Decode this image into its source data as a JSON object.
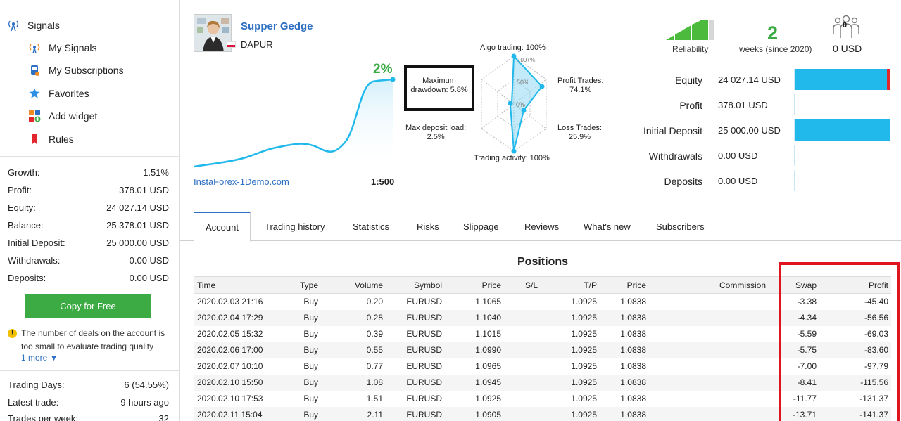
{
  "sidebar": {
    "nav": {
      "signals": "Signals",
      "my_signals": "My Signals",
      "my_subscriptions": "My Subscriptions",
      "favorites": "Favorites",
      "add_widget": "Add widget",
      "rules": "Rules"
    },
    "stats": [
      {
        "label": "Growth:",
        "value": "1.51%"
      },
      {
        "label": "Profit:",
        "value": "378.01 USD"
      },
      {
        "label": "Equity:",
        "value": "24 027.14 USD"
      },
      {
        "label": "Balance:",
        "value": "25 378.01 USD"
      },
      {
        "label": "Initial Deposit:",
        "value": "25 000.00 USD"
      },
      {
        "label": "Withdrawals:",
        "value": "0.00 USD"
      },
      {
        "label": "Deposits:",
        "value": "0.00 USD"
      }
    ],
    "copy_button": "Copy for Free",
    "warning": "The number of deals on the account is too small to evaluate trading quality",
    "more_link": "1 more ▼",
    "stats2": [
      {
        "label": "Trading Days:",
        "value": "6 (54.55%)"
      },
      {
        "label": "Latest trade:",
        "value": "9 hours ago"
      },
      {
        "label": "Trades per week:",
        "value": "32"
      }
    ]
  },
  "header": {
    "signal_name": "Supper Gedge",
    "broker": "DAPUR",
    "growth": "2%",
    "server": "InstaForex-1Demo.com",
    "leverage": "1:500",
    "colors": {
      "accent": "#2d6fc2",
      "green": "#3cab44",
      "bar": "#21b9ec",
      "red": "#e3262b"
    }
  },
  "radar": {
    "algo_trading": "Algo trading: 100%",
    "profit_trades_label": "Profit Trades:",
    "profit_trades_value": "74.1%",
    "loss_trades_label": "Loss Trades:",
    "loss_trades_value": "25.9%",
    "trading_activity": "Trading activity: 100%",
    "max_deposit_label": "Max deposit load:",
    "max_deposit_value": "2.5%",
    "max_drawdown_label": "Maximum",
    "max_drawdown_value": "drawdown: 5.8%",
    "scale_100": "100+%",
    "scale_50": "50%",
    "scale_0": "0%"
  },
  "summary": {
    "reliability_label": "Reliability",
    "weeks_value": "2",
    "weeks_label": "weeks (since 2020)",
    "subscribers_count": "0",
    "subscribers_funds": "0 USD"
  },
  "balance": [
    {
      "label": "Equity",
      "value": "24 027.14 USD",
      "fill": 0.961,
      "loss": 0.039
    },
    {
      "label": "Profit",
      "value": "378.01 USD",
      "fill": 0.0,
      "loss": 0
    },
    {
      "label": "Initial Deposit",
      "value": "25 000.00 USD",
      "fill": 1.0,
      "loss": 0
    },
    {
      "label": "Withdrawals",
      "value": "0.00 USD",
      "fill": 0.0,
      "loss": 0
    },
    {
      "label": "Deposits",
      "value": "0.00 USD",
      "fill": 0.0,
      "loss": 0
    }
  ],
  "tabs": [
    "Account",
    "Trading history",
    "Statistics",
    "Risks",
    "Slippage",
    "Reviews",
    "What's new",
    "Subscribers"
  ],
  "positions": {
    "title": "Positions",
    "columns": [
      "Time",
      "Type",
      "Volume",
      "Symbol",
      "Price",
      "S/L",
      "T/P",
      "Price",
      "Commission",
      "Swap",
      "Profit"
    ],
    "rows": [
      [
        "2020.02.03 21:16",
        "Buy",
        "0.20",
        "EURUSD",
        "1.1065",
        "",
        "1.0925",
        "1.0838",
        "",
        "-3.38",
        "-45.40"
      ],
      [
        "2020.02.04 17:29",
        "Buy",
        "0.28",
        "EURUSD",
        "1.1040",
        "",
        "1.0925",
        "1.0838",
        "",
        "-4.34",
        "-56.56"
      ],
      [
        "2020.02.05 15:32",
        "Buy",
        "0.39",
        "EURUSD",
        "1.1015",
        "",
        "1.0925",
        "1.0838",
        "",
        "-5.59",
        "-69.03"
      ],
      [
        "2020.02.06 17:00",
        "Buy",
        "0.55",
        "EURUSD",
        "1.0990",
        "",
        "1.0925",
        "1.0838",
        "",
        "-5.75",
        "-83.60"
      ],
      [
        "2020.02.07 10:10",
        "Buy",
        "0.77",
        "EURUSD",
        "1.0965",
        "",
        "1.0925",
        "1.0838",
        "",
        "-7.00",
        "-97.79"
      ],
      [
        "2020.02.10 15:50",
        "Buy",
        "1.08",
        "EURUSD",
        "1.0945",
        "",
        "1.0925",
        "1.0838",
        "",
        "-8.41",
        "-115.56"
      ],
      [
        "2020.02.10 17:53",
        "Buy",
        "1.51",
        "EURUSD",
        "1.0925",
        "",
        "1.0925",
        "1.0838",
        "",
        "-11.77",
        "-131.37"
      ],
      [
        "2020.02.11 15:04",
        "Buy",
        "2.11",
        "EURUSD",
        "1.0905",
        "",
        "1.0925",
        "1.0838",
        "",
        "-13.71",
        "-141.37"
      ]
    ]
  }
}
